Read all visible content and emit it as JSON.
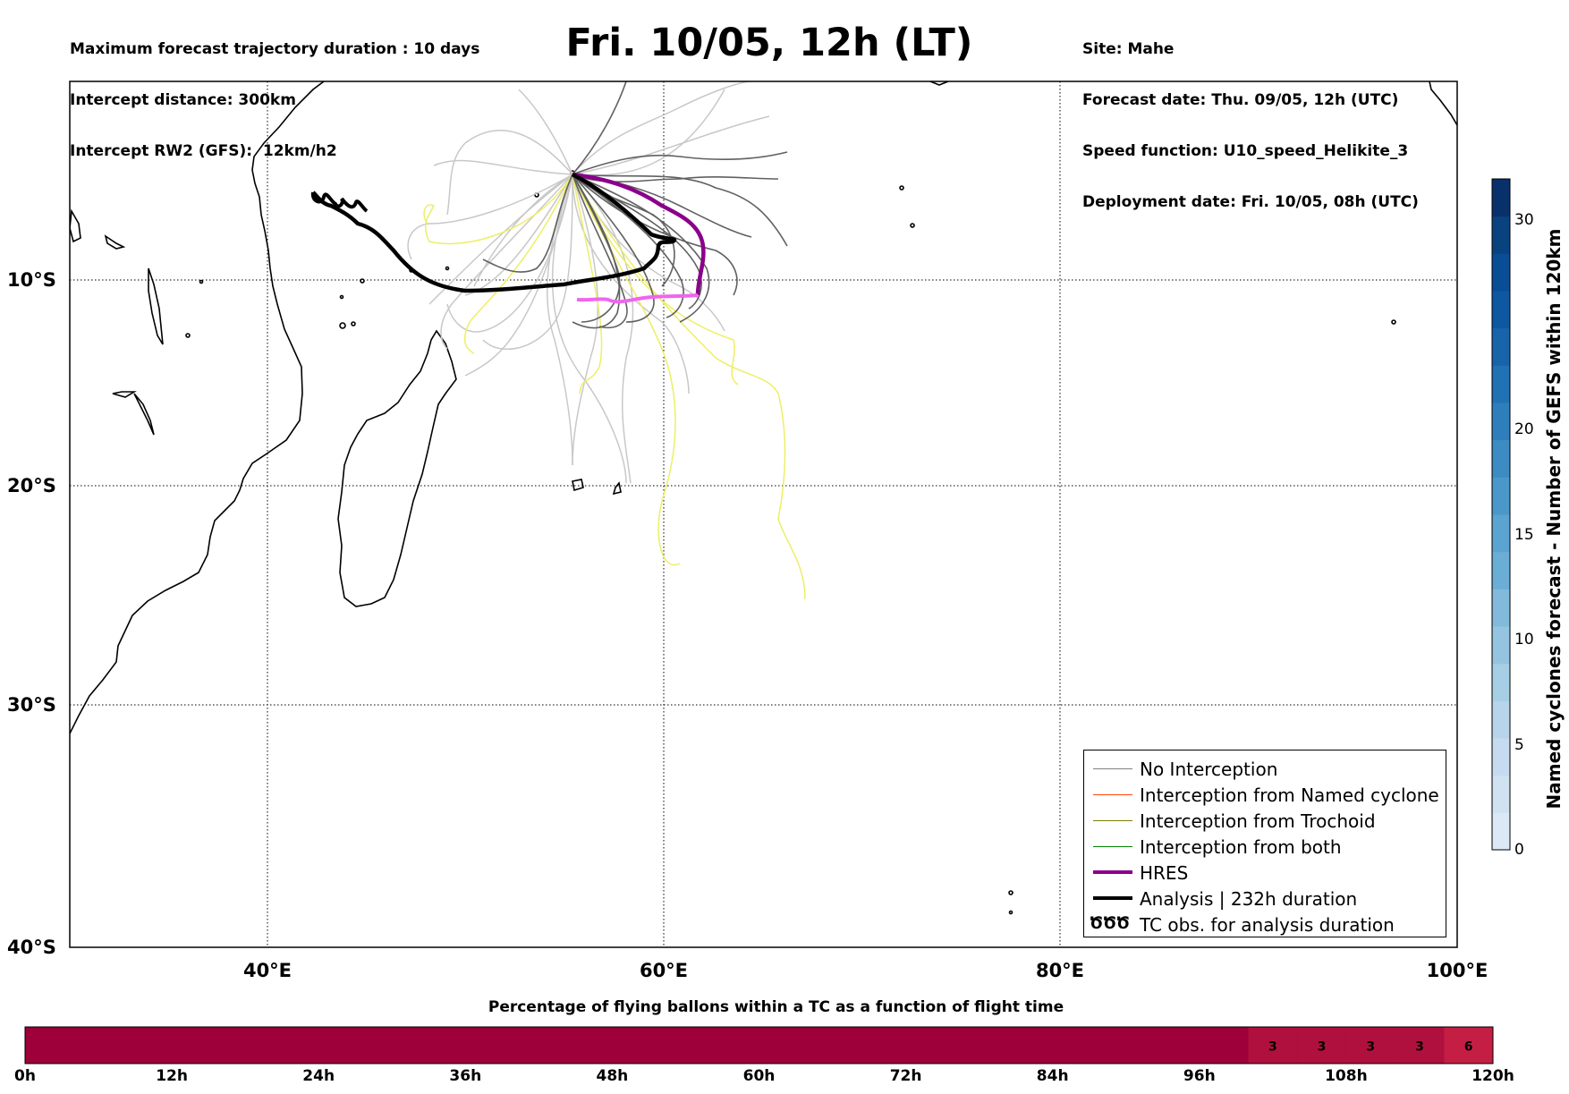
{
  "header_left": {
    "line1": "Maximum forecast trajectory duration : 10 days",
    "line2": "Intercept distance: 300km",
    "line3": "Intercept RW2 (GFS):  12km/h2"
  },
  "title": "Fri. 10/05, 12h (LT)",
  "header_right": {
    "line1": "Site: Mahe",
    "line2": "Forecast date: Thu. 09/05, 12h (UTC)",
    "line3": "Speed function: U10_speed_Helikite_3",
    "line4": "Deployment date: Fri. 10/05, 08h (UTC)"
  },
  "map": {
    "lon_range": [
      30,
      100
    ],
    "lat_range": [
      -40,
      0
    ],
    "lat_ticks": [
      "10°S",
      "20°S",
      "30°S",
      "40°S"
    ],
    "lon_ticks": [
      "40°E",
      "60°E",
      "80°E",
      "100°E"
    ],
    "colors": {
      "no_interception": "#808080",
      "named_cyclone": "#ff4500",
      "trochoid": "#808000",
      "both": "#008000",
      "hres": "#8b008b",
      "hres_late": "#ee66ee",
      "analysis": "#000000",
      "ensemble_light": "#c8c8c8",
      "ensemble_dark": "#606060",
      "ensemble_yellow": "#eeee66"
    }
  },
  "legend": {
    "items": [
      {
        "label": "No Interception",
        "color": "#808080",
        "width": 1.5
      },
      {
        "label": "Interception from Named cyclone",
        "color": "#ff4500",
        "width": 1.5
      },
      {
        "label": "Interception from Trochoid",
        "color": "#808000",
        "width": 1.5
      },
      {
        "label": "Interception from both",
        "color": "#008000",
        "width": 1.5
      },
      {
        "label": "HRES",
        "color": "#8b008b",
        "width": 4
      },
      {
        "label": "Analysis | 232h duration",
        "color": "#000000",
        "width": 4
      },
      {
        "label": "TC obs. for analysis duration",
        "color": "#000000",
        "width": 0,
        "symbol": "ԾԾԾ"
      }
    ]
  },
  "colorbar": {
    "label": "Named cyclones forecast - Number of GEFS within 120km",
    "ticks": [
      "0",
      "5",
      "10",
      "15",
      "20",
      "30"
    ],
    "colors": [
      "#dbe9f6",
      "#d0e1f2",
      "#c6dbef",
      "#b7d4ea",
      "#a6cee4",
      "#94c4df",
      "#82badb",
      "#6aaed6",
      "#5ba3d0",
      "#4a98c9",
      "#3c8cc3",
      "#2f7ebc",
      "#2171b5",
      "#1764ab",
      "#0e58a2",
      "#084d96",
      "#08437f",
      "#08306b"
    ]
  },
  "percentage_bar": {
    "title": "Percentage of flying ballons within a TC as a function of flight time",
    "ticks": [
      "0h",
      "12h",
      "24h",
      "36h",
      "48h",
      "60h",
      "72h",
      "84h",
      "96h",
      "108h",
      "120h"
    ],
    "base_color": "#9e003a",
    "cells": [
      {
        "value": "3",
        "color": "#b0103e"
      },
      {
        "value": "3",
        "color": "#b0103e"
      },
      {
        "value": "3",
        "color": "#b0103e"
      },
      {
        "value": "3",
        "color": "#b0103e"
      },
      {
        "value": "6",
        "color": "#c41e44"
      }
    ]
  }
}
